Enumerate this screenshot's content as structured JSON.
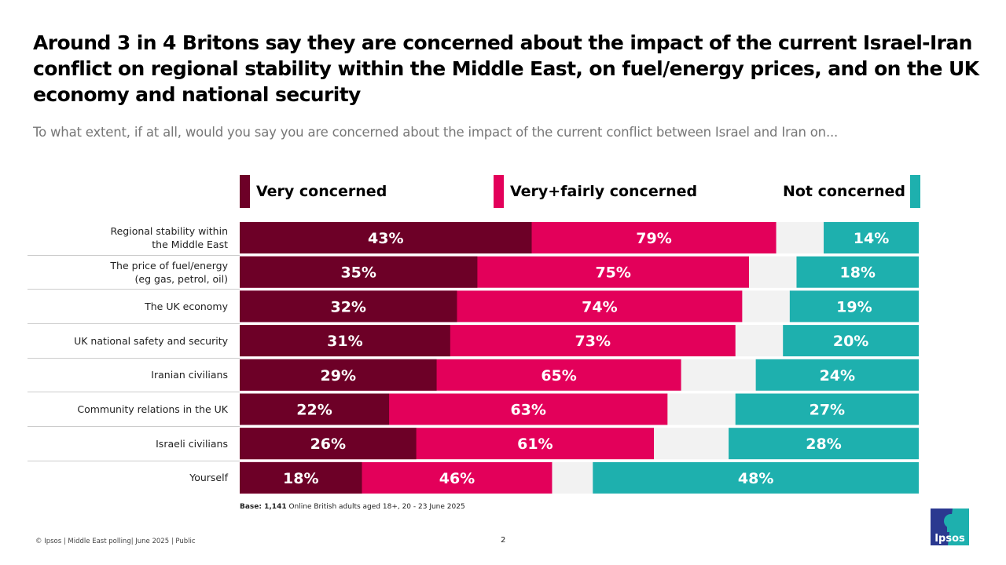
{
  "title": "Around 3 in 4 Britons say they are concerned about the impact of the current Israel-Iran conflict on regional stability within the Middle East, on fuel/energy prices, and on the UK economy and national security",
  "subtitle": "To what extent, if at all, would you say you are concerned about the impact of the current conflict between Israel and Iran on...",
  "base_label": "Base: 1,141",
  "base_text": " Online British adults aged 18+, 20 - 23 June 2025",
  "footer": "© Ipsos | Middle East polling| June 2025 | Public",
  "page_number": "2",
  "logo_text": "Ipsos",
  "colors": {
    "very": "#6d0027",
    "very_fairly": "#e3005a",
    "not": "#1eb0ae",
    "gap": "#f2f2f2"
  },
  "chart_data": {
    "type": "bar",
    "orientation": "horizontal",
    "xlim": [
      0,
      100
    ],
    "categories": [
      "Regional stability within\nthe Middle East",
      "The price of fuel/energy\n(eg gas, petrol, oil)",
      "The UK economy",
      "UK national safety and security",
      "Iranian civilians",
      "Community relations in the UK",
      "Israeli civilians",
      "Yourself"
    ],
    "series": [
      {
        "name": "Very concerned",
        "values": [
          43,
          35,
          32,
          31,
          29,
          22,
          26,
          18
        ]
      },
      {
        "name": "Very+fairly concerned",
        "values": [
          79,
          75,
          74,
          73,
          65,
          63,
          61,
          46
        ]
      },
      {
        "name": "Not concerned",
        "values": [
          14,
          18,
          19,
          20,
          24,
          27,
          28,
          48
        ]
      }
    ]
  }
}
